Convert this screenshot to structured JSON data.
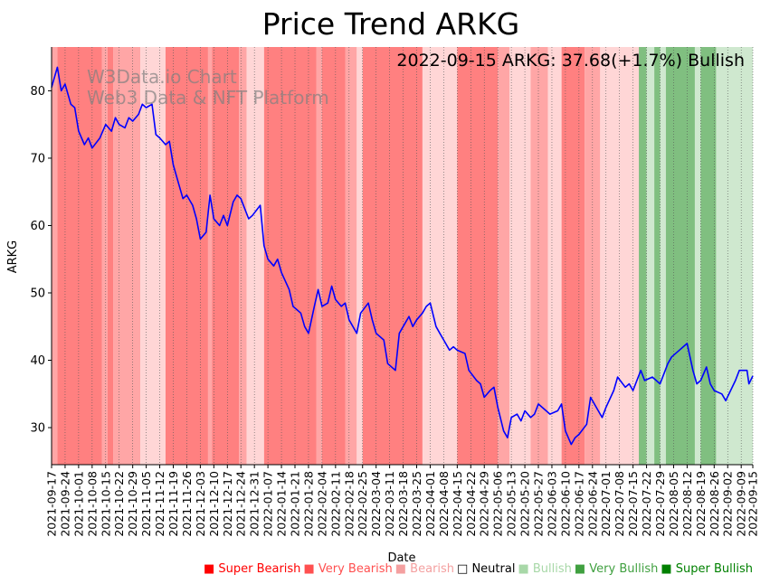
{
  "chart_data": {
    "type": "line",
    "title": "Price Trend ARKG",
    "xlabel": "Date",
    "ylabel": "ARKG",
    "ylim": [
      24.5,
      86.5
    ],
    "yticks": [
      30,
      40,
      50,
      60,
      70,
      80
    ],
    "x_start": "2021-09-17",
    "x_end": "2022-09-15",
    "xticks": [
      "2021-09-17",
      "2021-09-24",
      "2021-10-01",
      "2021-10-08",
      "2021-10-15",
      "2021-10-22",
      "2021-10-29",
      "2021-11-05",
      "2021-11-12",
      "2021-11-19",
      "2021-11-26",
      "2021-12-03",
      "2021-12-10",
      "2021-12-17",
      "2021-12-24",
      "2021-12-31",
      "2022-01-07",
      "2022-01-14",
      "2022-01-21",
      "2022-01-28",
      "2022-02-04",
      "2022-02-11",
      "2022-02-18",
      "2022-02-25",
      "2022-03-04",
      "2022-03-11",
      "2022-03-18",
      "2022-03-25",
      "2022-04-01",
      "2022-04-08",
      "2022-04-15",
      "2022-04-22",
      "2022-04-29",
      "2022-05-06",
      "2022-05-13",
      "2022-05-20",
      "2022-05-27",
      "2022-06-03",
      "2022-06-10",
      "2022-06-17",
      "2022-06-24",
      "2022-07-01",
      "2022-07-08",
      "2022-07-15",
      "2022-07-22",
      "2022-07-29",
      "2022-08-05",
      "2022-08-12",
      "2022-08-19",
      "2022-08-26",
      "2022-09-02",
      "2022-09-09",
      "2022-09-15"
    ],
    "series": [
      {
        "name": "ARKG",
        "color": "#0000ff",
        "points": [
          [
            "2021-09-17",
            80.5
          ],
          [
            "2021-09-20",
            83.5
          ],
          [
            "2021-09-22",
            80.0
          ],
          [
            "2021-09-24",
            81.0
          ],
          [
            "2021-09-27",
            78.0
          ],
          [
            "2021-09-29",
            77.5
          ],
          [
            "2021-10-01",
            74.0
          ],
          [
            "2021-10-04",
            72.0
          ],
          [
            "2021-10-06",
            73.0
          ],
          [
            "2021-10-08",
            71.5
          ],
          [
            "2021-10-12",
            73.0
          ],
          [
            "2021-10-15",
            75.0
          ],
          [
            "2021-10-18",
            74.0
          ],
          [
            "2021-10-20",
            76.0
          ],
          [
            "2021-10-22",
            75.0
          ],
          [
            "2021-10-25",
            74.5
          ],
          [
            "2021-10-27",
            76.0
          ],
          [
            "2021-10-29",
            75.5
          ],
          [
            "2021-11-01",
            76.5
          ],
          [
            "2021-11-03",
            78.0
          ],
          [
            "2021-11-05",
            77.5
          ],
          [
            "2021-11-08",
            78.0
          ],
          [
            "2021-11-10",
            73.5
          ],
          [
            "2021-11-12",
            73.0
          ],
          [
            "2021-11-15",
            72.0
          ],
          [
            "2021-11-17",
            72.5
          ],
          [
            "2021-11-19",
            69.0
          ],
          [
            "2021-11-22",
            66.0
          ],
          [
            "2021-11-24",
            64.0
          ],
          [
            "2021-11-26",
            64.5
          ],
          [
            "2021-11-29",
            63.0
          ],
          [
            "2021-12-01",
            61.0
          ],
          [
            "2021-12-03",
            58.0
          ],
          [
            "2021-12-06",
            59.0
          ],
          [
            "2021-12-08",
            64.5
          ],
          [
            "2021-12-10",
            61.0
          ],
          [
            "2021-12-13",
            60.0
          ],
          [
            "2021-12-15",
            61.5
          ],
          [
            "2021-12-17",
            60.0
          ],
          [
            "2021-12-20",
            63.5
          ],
          [
            "2021-12-22",
            64.5
          ],
          [
            "2021-12-24",
            64.0
          ],
          [
            "2021-12-28",
            61.0
          ],
          [
            "2021-12-30",
            61.5
          ],
          [
            "2022-01-03",
            63.0
          ],
          [
            "2022-01-05",
            57.0
          ],
          [
            "2022-01-07",
            55.0
          ],
          [
            "2022-01-10",
            54.0
          ],
          [
            "2022-01-12",
            55.0
          ],
          [
            "2022-01-14",
            53.0
          ],
          [
            "2022-01-18",
            50.5
          ],
          [
            "2022-01-20",
            48.0
          ],
          [
            "2022-01-24",
            47.0
          ],
          [
            "2022-01-26",
            45.0
          ],
          [
            "2022-01-28",
            44.0
          ],
          [
            "2022-01-31",
            48.0
          ],
          [
            "2022-02-02",
            50.5
          ],
          [
            "2022-02-04",
            48.0
          ],
          [
            "2022-02-07",
            48.5
          ],
          [
            "2022-02-09",
            51.0
          ],
          [
            "2022-02-11",
            49.0
          ],
          [
            "2022-02-14",
            48.0
          ],
          [
            "2022-02-16",
            48.5
          ],
          [
            "2022-02-18",
            46.0
          ],
          [
            "2022-02-22",
            44.0
          ],
          [
            "2022-02-24",
            47.0
          ],
          [
            "2022-02-28",
            48.5
          ],
          [
            "2022-03-02",
            46.0
          ],
          [
            "2022-03-04",
            44.0
          ],
          [
            "2022-03-08",
            43.0
          ],
          [
            "2022-03-10",
            39.5
          ],
          [
            "2022-03-14",
            38.5
          ],
          [
            "2022-03-16",
            44.0
          ],
          [
            "2022-03-18",
            45.0
          ],
          [
            "2022-03-21",
            46.5
          ],
          [
            "2022-03-23",
            45.0
          ],
          [
            "2022-03-25",
            46.0
          ],
          [
            "2022-03-28",
            47.0
          ],
          [
            "2022-03-30",
            48.0
          ],
          [
            "2022-04-01",
            48.5
          ],
          [
            "2022-04-04",
            45.0
          ],
          [
            "2022-04-06",
            44.0
          ],
          [
            "2022-04-08",
            43.0
          ],
          [
            "2022-04-11",
            41.5
          ],
          [
            "2022-04-13",
            42.0
          ],
          [
            "2022-04-15",
            41.5
          ],
          [
            "2022-04-19",
            41.0
          ],
          [
            "2022-04-21",
            38.5
          ],
          [
            "2022-04-25",
            37.0
          ],
          [
            "2022-04-27",
            36.5
          ],
          [
            "2022-04-29",
            34.5
          ],
          [
            "2022-05-02",
            35.5
          ],
          [
            "2022-05-04",
            36.0
          ],
          [
            "2022-05-06",
            33.0
          ],
          [
            "2022-05-09",
            29.5
          ],
          [
            "2022-05-11",
            28.5
          ],
          [
            "2022-05-13",
            31.5
          ],
          [
            "2022-05-16",
            32.0
          ],
          [
            "2022-05-18",
            31.0
          ],
          [
            "2022-05-20",
            32.5
          ],
          [
            "2022-05-23",
            31.5
          ],
          [
            "2022-05-25",
            32.0
          ],
          [
            "2022-05-27",
            33.5
          ],
          [
            "2022-05-31",
            32.5
          ],
          [
            "2022-06-02",
            32.0
          ],
          [
            "2022-06-06",
            32.5
          ],
          [
            "2022-06-08",
            33.5
          ],
          [
            "2022-06-10",
            29.5
          ],
          [
            "2022-06-13",
            27.5
          ],
          [
            "2022-06-15",
            28.5
          ],
          [
            "2022-06-17",
            29.0
          ],
          [
            "2022-06-21",
            30.5
          ],
          [
            "2022-06-23",
            34.5
          ],
          [
            "2022-06-27",
            32.5
          ],
          [
            "2022-06-29",
            31.5
          ],
          [
            "2022-07-01",
            33.0
          ],
          [
            "2022-07-05",
            35.5
          ],
          [
            "2022-07-07",
            37.5
          ],
          [
            "2022-07-11",
            36.0
          ],
          [
            "2022-07-13",
            36.5
          ],
          [
            "2022-07-15",
            35.5
          ],
          [
            "2022-07-19",
            38.5
          ],
          [
            "2022-07-21",
            37.0
          ],
          [
            "2022-07-25",
            37.5
          ],
          [
            "2022-07-27",
            37.0
          ],
          [
            "2022-07-29",
            36.5
          ],
          [
            "2022-08-02",
            39.5
          ],
          [
            "2022-08-04",
            40.5
          ],
          [
            "2022-08-08",
            41.5
          ],
          [
            "2022-08-10",
            42.0
          ],
          [
            "2022-08-12",
            42.5
          ],
          [
            "2022-08-15",
            38.5
          ],
          [
            "2022-08-17",
            36.5
          ],
          [
            "2022-08-19",
            37.0
          ],
          [
            "2022-08-22",
            39.0
          ],
          [
            "2022-08-24",
            36.5
          ],
          [
            "2022-08-26",
            35.5
          ],
          [
            "2022-08-30",
            35.0
          ],
          [
            "2022-09-01",
            34.0
          ],
          [
            "2022-09-06",
            37.0
          ],
          [
            "2022-09-08",
            38.5
          ],
          [
            "2022-09-12",
            38.5
          ],
          [
            "2022-09-13",
            36.5
          ],
          [
            "2022-09-15",
            37.68
          ]
        ]
      }
    ],
    "regimes": [
      {
        "start": "2021-09-17",
        "end": "2021-09-20",
        "level": "Bearish"
      },
      {
        "start": "2021-09-20",
        "end": "2021-10-13",
        "level": "Very Bearish"
      },
      {
        "start": "2021-10-13",
        "end": "2021-10-16",
        "level": "Bearish"
      },
      {
        "start": "2021-10-16",
        "end": "2021-10-19",
        "level": "Very Bearish"
      },
      {
        "start": "2021-10-19",
        "end": "2021-11-02",
        "level": "Bearish"
      },
      {
        "start": "2021-11-02",
        "end": "2021-11-15",
        "level": "Neutral-Bearish"
      },
      {
        "start": "2021-11-15",
        "end": "2021-12-07",
        "level": "Very Bearish"
      },
      {
        "start": "2021-12-07",
        "end": "2021-12-09",
        "level": "Bearish"
      },
      {
        "start": "2021-12-09",
        "end": "2021-12-23",
        "level": "Very Bearish"
      },
      {
        "start": "2021-12-23",
        "end": "2021-12-27",
        "level": "Bearish"
      },
      {
        "start": "2021-12-27",
        "end": "2022-01-05",
        "level": "Neutral-Bearish"
      },
      {
        "start": "2022-01-05",
        "end": "2022-02-01",
        "level": "Very Bearish"
      },
      {
        "start": "2022-02-01",
        "end": "2022-02-04",
        "level": "Bearish"
      },
      {
        "start": "2022-02-04",
        "end": "2022-02-16",
        "level": "Very Bearish"
      },
      {
        "start": "2022-02-16",
        "end": "2022-02-22",
        "level": "Bearish"
      },
      {
        "start": "2022-02-22",
        "end": "2022-02-25",
        "level": "Neutral-Bearish"
      },
      {
        "start": "2022-02-25",
        "end": "2022-03-28",
        "level": "Very Bearish"
      },
      {
        "start": "2022-03-28",
        "end": "2022-04-15",
        "level": "Neutral-Bearish"
      },
      {
        "start": "2022-04-15",
        "end": "2022-05-06",
        "level": "Very Bearish"
      },
      {
        "start": "2022-05-06",
        "end": "2022-05-12",
        "level": "Bearish"
      },
      {
        "start": "2022-05-12",
        "end": "2022-05-23",
        "level": "Neutral-Bearish"
      },
      {
        "start": "2022-05-23",
        "end": "2022-06-01",
        "level": "Bearish"
      },
      {
        "start": "2022-06-01",
        "end": "2022-06-08",
        "level": "Neutral-Bearish"
      },
      {
        "start": "2022-06-08",
        "end": "2022-06-20",
        "level": "Very Bearish"
      },
      {
        "start": "2022-06-20",
        "end": "2022-06-28",
        "level": "Bearish"
      },
      {
        "start": "2022-06-28",
        "end": "2022-07-18",
        "level": "Neutral-Bearish"
      },
      {
        "start": "2022-07-18",
        "end": "2022-07-22",
        "level": "Very Bullish"
      },
      {
        "start": "2022-07-22",
        "end": "2022-07-26",
        "level": "Bullish"
      },
      {
        "start": "2022-07-26",
        "end": "2022-07-29",
        "level": "Very Bullish"
      },
      {
        "start": "2022-07-29",
        "end": "2022-08-01",
        "level": "Bullish"
      },
      {
        "start": "2022-08-01",
        "end": "2022-08-16",
        "level": "Very Bullish"
      },
      {
        "start": "2022-08-16",
        "end": "2022-08-19",
        "level": "Bullish"
      },
      {
        "start": "2022-08-19",
        "end": "2022-08-27",
        "level": "Very Bullish"
      },
      {
        "start": "2022-08-27",
        "end": "2022-09-16",
        "level": "Bullish"
      }
    ],
    "regime_colors": {
      "Very Bearish": "#ff8080",
      "Bearish": "#ffa6a6",
      "Neutral-Bearish": "#ffd6d6",
      "Very Bullish": "#80bf80",
      "Bullish": "#cfe8cf"
    },
    "annotation": "2022-09-15 ARKG: 37.68(+1.7%) Bullish",
    "watermark": [
      "W3Data.io Chart",
      "Web3 Data & NFT Platform"
    ],
    "legend": [
      {
        "label": "Super Bearish",
        "color": "#ff0000",
        "symbol": "■"
      },
      {
        "label": "Very Bearish",
        "color": "#ff5050",
        "symbol": "■"
      },
      {
        "label": "Bearish",
        "color": "#f4a0a0",
        "symbol": "■"
      },
      {
        "label": "Neutral",
        "color": "#000000",
        "symbol": "□"
      },
      {
        "label": "Bullish",
        "color": "#a8d8a8",
        "symbol": "■"
      },
      {
        "label": "Very Bullish",
        "color": "#40a040",
        "symbol": "■"
      },
      {
        "label": "Super Bullish",
        "color": "#008000",
        "symbol": "■"
      }
    ]
  }
}
